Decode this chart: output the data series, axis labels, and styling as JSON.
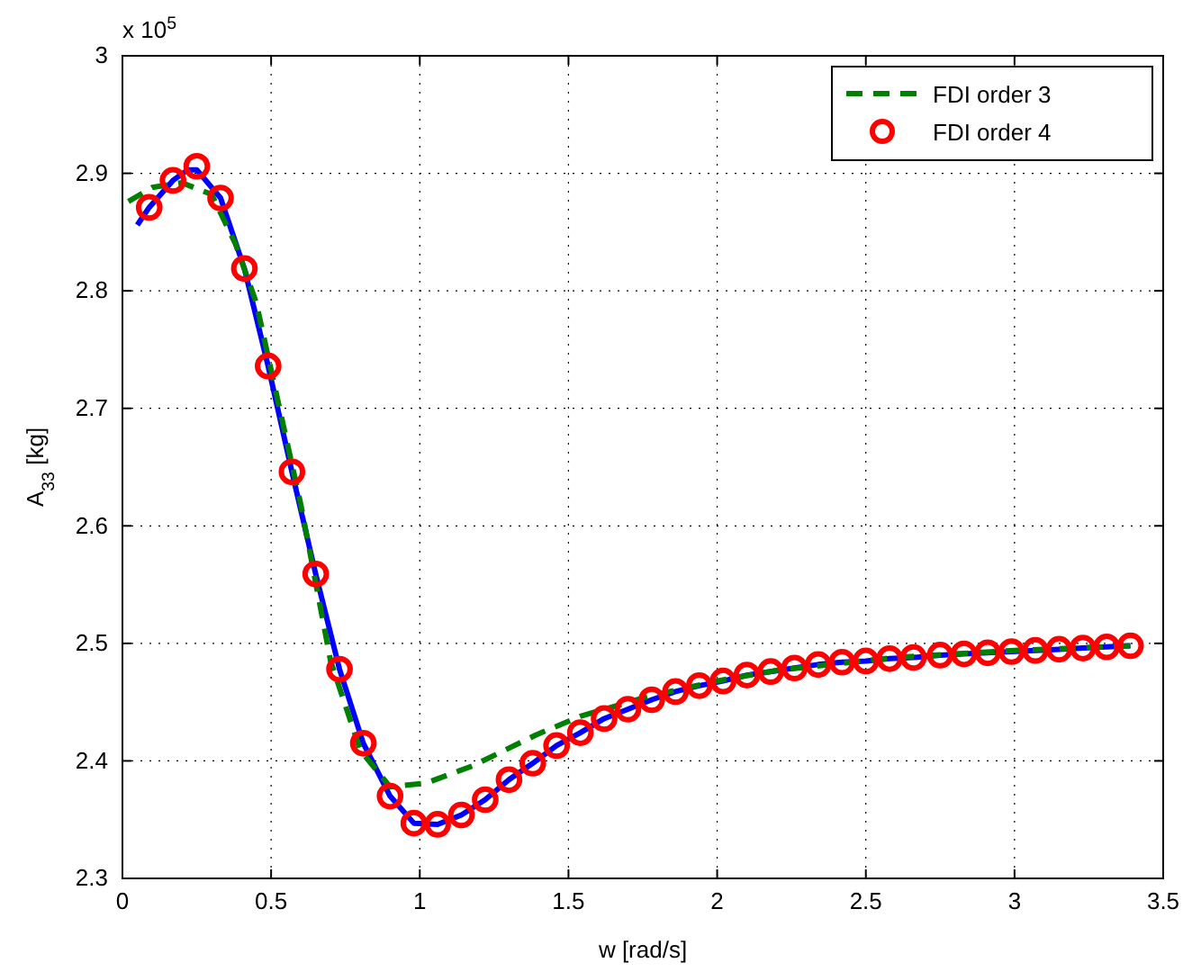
{
  "chart_data": {
    "type": "line",
    "xlabel": "w [rad/s]",
    "ylabel": "A$_{33}$ [kg]",
    "annotations": [
      "x 10$^{5}$"
    ],
    "xlim": [
      0,
      3.5
    ],
    "xticks": [
      0,
      0.5,
      1,
      1.5,
      2,
      2.5,
      3,
      3.5
    ],
    "ylim": [
      2.3,
      3
    ],
    "yticks": [
      2.3,
      2.4,
      2.5,
      2.6,
      2.7,
      2.8,
      2.9,
      3
    ],
    "grid": true,
    "legend": "top right",
    "series": [
      {
        "type": "line",
        "color": "#0000ff",
        "line_style": "solid",
        "marker": "none",
        "x": [
          0.05,
          0.09,
          0.17,
          0.22,
          0.25,
          0.33,
          0.41,
          0.49,
          0.57,
          0.65,
          0.73,
          0.81,
          0.9,
          0.98,
          1.06,
          1.14,
          1.22,
          1.3,
          1.38,
          1.46,
          1.54,
          1.62,
          1.7,
          1.78,
          1.86,
          1.94,
          2.02,
          2.1,
          2.18,
          2.26,
          2.34,
          2.42,
          2.5,
          2.58,
          2.66,
          2.75,
          2.83,
          2.91,
          2.99,
          3.07,
          3.15,
          3.23,
          3.31,
          3.39
        ],
        "values": [
          2.856,
          2.871,
          2.894,
          2.903,
          2.903,
          2.879,
          2.819,
          2.736,
          2.646,
          2.559,
          2.478,
          2.415,
          2.37,
          2.347,
          2.346,
          2.354,
          2.367,
          2.384,
          2.398,
          2.413,
          2.424,
          2.436,
          2.444,
          2.452,
          2.459,
          2.464,
          2.468,
          2.473,
          2.476,
          2.479,
          2.482,
          2.484,
          2.485,
          2.487,
          2.488,
          2.49,
          2.491,
          2.492,
          2.493,
          2.494,
          2.495,
          2.496,
          2.497,
          2.498
        ]
      },
      {
        "name": "FDI order 3",
        "type": "line",
        "color": "#008000",
        "line_style": "dashed",
        "marker": "none",
        "x": [
          0.02,
          0.1,
          0.2,
          0.3,
          0.38,
          0.45,
          0.6,
          0.7,
          0.8,
          0.9,
          1.02,
          1.18,
          1.39,
          1.54,
          1.77,
          2.0,
          2.2,
          2.6,
          3.0,
          3.39
        ],
        "values": [
          2.876,
          2.888,
          2.892,
          2.882,
          2.84,
          2.79,
          2.618,
          2.485,
          2.409,
          2.378,
          2.381,
          2.396,
          2.422,
          2.438,
          2.455,
          2.468,
          2.477,
          2.488,
          2.494,
          2.498
        ]
      },
      {
        "name": "FDI order 4",
        "type": "scatter",
        "color": "#ff0000",
        "marker": "circle",
        "x": [
          0.09,
          0.17,
          0.25,
          0.33,
          0.41,
          0.49,
          0.57,
          0.65,
          0.73,
          0.81,
          0.9,
          0.98,
          1.06,
          1.14,
          1.22,
          1.3,
          1.38,
          1.46,
          1.54,
          1.62,
          1.7,
          1.78,
          1.86,
          1.94,
          2.02,
          2.1,
          2.18,
          2.26,
          2.34,
          2.42,
          2.5,
          2.58,
          2.66,
          2.75,
          2.83,
          2.91,
          2.99,
          3.07,
          3.15,
          3.23,
          3.31,
          3.39
        ],
        "values": [
          2.871,
          2.894,
          2.906,
          2.879,
          2.819,
          2.736,
          2.646,
          2.559,
          2.478,
          2.415,
          2.37,
          2.347,
          2.346,
          2.354,
          2.367,
          2.384,
          2.398,
          2.413,
          2.424,
          2.436,
          2.444,
          2.452,
          2.459,
          2.464,
          2.468,
          2.473,
          2.476,
          2.479,
          2.482,
          2.484,
          2.485,
          2.487,
          2.488,
          2.49,
          2.491,
          2.492,
          2.493,
          2.494,
          2.495,
          2.496,
          2.497,
          2.498
        ]
      }
    ]
  }
}
